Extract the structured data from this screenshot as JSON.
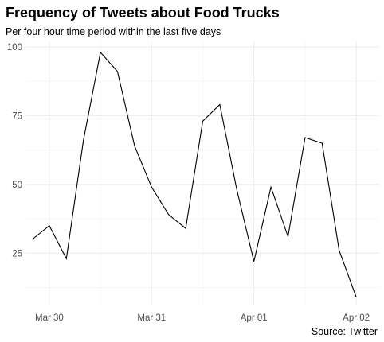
{
  "chart_data": {
    "type": "line",
    "title": "Frequency of Tweets about Food Trucks",
    "subtitle": "Per four hour time period within the last five days",
    "caption": "Source: Twitter",
    "xlabel": "",
    "ylabel": "",
    "x_ticks": [
      "Mar 30",
      "Mar 31",
      "Apr 01",
      "Apr 02"
    ],
    "y_ticks": [
      25,
      50,
      75,
      100
    ],
    "ylim": [
      6,
      102
    ],
    "grid": true,
    "line_color": "#000000",
    "grid_color": "#ebebeb",
    "series": [
      {
        "x": [
          "Mar 29 20:00",
          "Mar 30 00:00",
          "Mar 30 04:00",
          "Mar 30 08:00",
          "Mar 30 12:00",
          "Mar 30 16:00",
          "Mar 30 20:00",
          "Mar 31 00:00",
          "Mar 31 04:00",
          "Mar 31 08:00",
          "Mar 31 12:00",
          "Mar 31 16:00",
          "Mar 31 20:00",
          "Apr 01 00:00",
          "Apr 01 04:00",
          "Apr 01 08:00",
          "Apr 01 12:00",
          "Apr 01 16:00",
          "Apr 01 20:00",
          "Apr 02 00:00",
          "Apr 02 04:00"
        ],
        "values": [
          30,
          35,
          23,
          66,
          98,
          91,
          64,
          49,
          39,
          34,
          73,
          79,
          48,
          22,
          49,
          31,
          67,
          65,
          26,
          9,
          null
        ]
      }
    ]
  }
}
